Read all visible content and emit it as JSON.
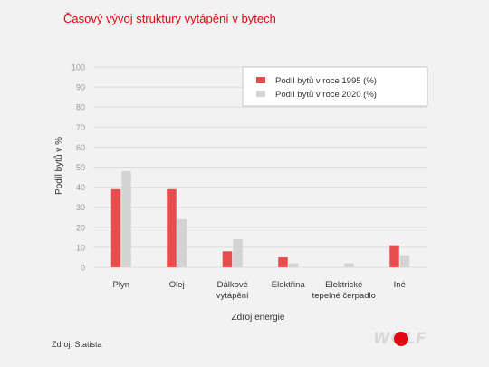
{
  "header": {
    "title": "Časový vývoj struktury vytápění v bytech"
  },
  "footer": {
    "source": "Zdroj: Statista",
    "logo_text": "WOLF"
  },
  "colors": {
    "accent": "#e30613",
    "series1": "#e84c4c",
    "series2": "#d3d3d3"
  },
  "chart_data": {
    "type": "bar",
    "title": "Časový vývoj struktury vytápění v bytech",
    "xlabel": "Zdroj energie",
    "ylabel": "Podíl bytů v %",
    "ylim": [
      0,
      100
    ],
    "yticks": [
      0,
      10,
      20,
      30,
      40,
      50,
      60,
      70,
      80,
      90,
      100
    ],
    "grid": true,
    "legend_position": "top-right",
    "categories": [
      [
        "Plyn"
      ],
      [
        "Olej"
      ],
      [
        "Dálkové",
        "vytápění"
      ],
      [
        "Elektřina"
      ],
      [
        "Elektrické",
        "tepelné čerpadlo"
      ],
      [
        "Iné"
      ]
    ],
    "series": [
      {
        "name": "Podíl bytů v roce 1995 (%)",
        "color": "#e84c4c",
        "values": [
          39,
          39,
          8,
          5,
          0,
          11
        ]
      },
      {
        "name": "Podíl bytů v roce 2020 (%)",
        "color": "#d3d3d3",
        "values": [
          48,
          24,
          14,
          2,
          2,
          6
        ]
      }
    ]
  }
}
